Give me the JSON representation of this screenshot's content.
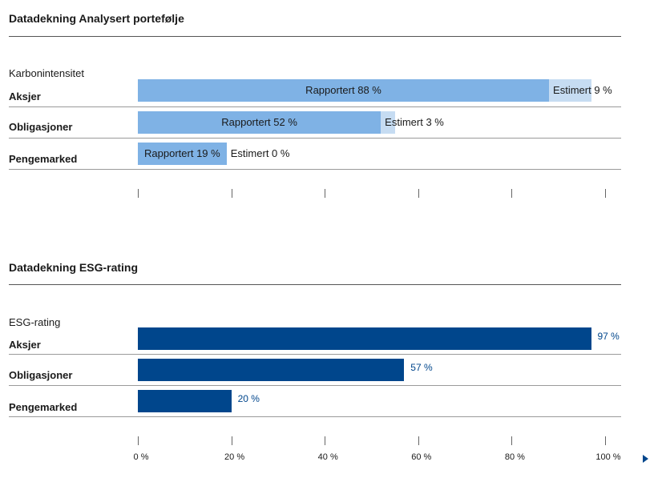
{
  "charts": {
    "carbon": {
      "title": "Datadekning Analysert portefølje",
      "subtitle": "Karbonintensitet"
    },
    "esg": {
      "title": "Datadekning ESG-rating",
      "subtitle": "ESG-rating"
    }
  },
  "chart_data": [
    {
      "type": "bar",
      "orientation": "horizontal",
      "stacked": true,
      "title": "Datadekning Analysert portefølje",
      "subtitle": "Karbonintensitet",
      "categories": [
        "Aksjer",
        "Obligasjoner",
        "Pengemarked"
      ],
      "series": [
        {
          "name": "Rapportert",
          "values": [
            88,
            52,
            19
          ],
          "labels": [
            "Rapportert 88 %",
            "Rapportert 52 %",
            "Rapportert 19 %"
          ]
        },
        {
          "name": "Estimert",
          "values": [
            9,
            3,
            0
          ],
          "labels": [
            "Estimert 9 %",
            "Estimert 3 %",
            "Estimert 0 %"
          ]
        }
      ],
      "xlim": [
        0,
        100
      ],
      "colors": {
        "Rapportert": "#7fb2e5",
        "Estimert": "#c6dcf2"
      }
    },
    {
      "type": "bar",
      "orientation": "horizontal",
      "title": "Datadekning ESG-rating",
      "subtitle": "ESG-rating",
      "categories": [
        "Aksjer",
        "Obligasjoner",
        "Pengemarked"
      ],
      "values": [
        97,
        57,
        20
      ],
      "value_labels": [
        "97 %",
        "57 %",
        "20 %"
      ],
      "xlim": [
        0,
        100
      ],
      "ticks": [
        0,
        20,
        40,
        60,
        80,
        100
      ],
      "tick_labels": [
        "0 %",
        "20 %",
        "40 %",
        "60 %",
        "80 %",
        "100 %"
      ],
      "color": "#00468c"
    }
  ]
}
